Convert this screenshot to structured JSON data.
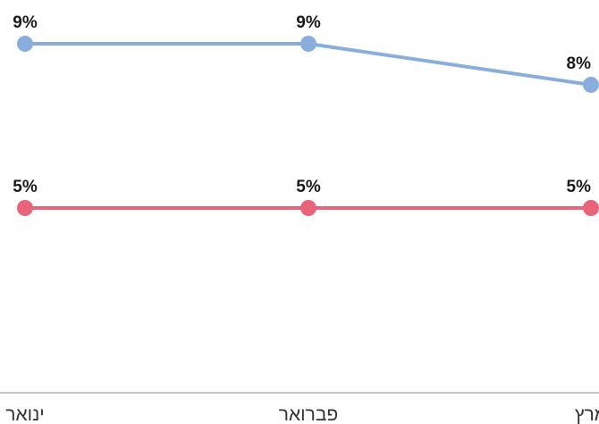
{
  "chart_data": {
    "type": "line",
    "categories": [
      "ינואר",
      "פברואר",
      "מרץ"
    ],
    "series": [
      {
        "values": [
          9,
          9,
          8
        ],
        "labels": [
          "9%",
          "9%",
          "8%"
        ],
        "color": "#8aaedb"
      },
      {
        "values": [
          5,
          5,
          5
        ],
        "labels": [
          "5%",
          "5%",
          "5%"
        ],
        "color": "#e8647a"
      }
    ],
    "ylim": [
      0,
      10
    ],
    "grid": false,
    "axis_color": "#b3b3b3"
  }
}
